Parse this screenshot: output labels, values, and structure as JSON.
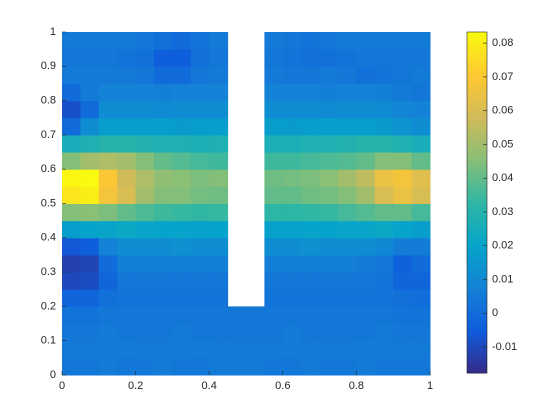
{
  "chart_data": {
    "type": "heatmap",
    "colormap": "parula",
    "x": [
      0.025,
      0.075,
      0.125,
      0.175,
      0.225,
      0.275,
      0.325,
      0.375,
      0.425,
      0.475,
      0.525,
      0.575,
      0.625,
      0.675,
      0.725,
      0.775,
      0.825,
      0.875,
      0.925,
      0.975
    ],
    "y": [
      0.025,
      0.075,
      0.125,
      0.175,
      0.225,
      0.275,
      0.325,
      0.375,
      0.425,
      0.475,
      0.525,
      0.575,
      0.625,
      0.675,
      0.725,
      0.775,
      0.825,
      0.875,
      0.925,
      0.975
    ],
    "z": [
      [
        0.004,
        0.004,
        0.005,
        0.004,
        0.004,
        0.005,
        0.004,
        0.004,
        0.005,
        0.005,
        0.005,
        0.004,
        0.004,
        0.005,
        0.004,
        0.004,
        0.005,
        0.004,
        0.004,
        0.004
      ],
      [
        0.005,
        0.005,
        0.005,
        0.006,
        0.005,
        0.005,
        0.005,
        0.006,
        0.005,
        0.005,
        0.005,
        0.005,
        0.006,
        0.005,
        0.005,
        0.005,
        0.006,
        0.005,
        0.005,
        0.005
      ],
      [
        0.004,
        0.004,
        0.005,
        0.004,
        0.004,
        0.004,
        0.005,
        0.004,
        0.004,
        0.004,
        0.004,
        0.004,
        0.005,
        0.004,
        0.004,
        0.004,
        0.004,
        0.005,
        0.004,
        0.004
      ],
      [
        0.003,
        0.003,
        0.004,
        0.004,
        0.004,
        0.004,
        0.004,
        0.004,
        0.004,
        0.004,
        0.004,
        0.004,
        0.004,
        0.004,
        0.004,
        0.004,
        0.004,
        0.004,
        0.003,
        0.003
      ],
      [
        -0.002,
        -0.002,
        0.002,
        0.003,
        0.003,
        0.003,
        0.003,
        0.003,
        0.003,
        null,
        null,
        0.003,
        0.003,
        0.003,
        0.003,
        0.003,
        0.003,
        0.003,
        0.002,
        0.001
      ],
      [
        -0.01,
        -0.009,
        -0.002,
        0.004,
        0.004,
        0.004,
        0.004,
        0.004,
        0.004,
        null,
        null,
        0.004,
        0.004,
        0.004,
        0.004,
        0.004,
        0.004,
        0.003,
        -0.002,
        -0.002
      ],
      [
        -0.012,
        -0.011,
        0.0,
        0.007,
        0.007,
        0.007,
        0.007,
        0.007,
        0.007,
        null,
        null,
        0.007,
        0.007,
        0.007,
        0.007,
        0.007,
        0.006,
        0.004,
        -0.003,
        0.0
      ],
      [
        -0.006,
        -0.004,
        0.008,
        0.012,
        0.012,
        0.012,
        0.013,
        0.012,
        0.012,
        null,
        null,
        0.012,
        0.012,
        0.013,
        0.012,
        0.012,
        0.012,
        0.01,
        0.006,
        0.006
      ],
      [
        0.018,
        0.02,
        0.021,
        0.022,
        0.021,
        0.02,
        0.02,
        0.019,
        0.02,
        null,
        null,
        0.019,
        0.019,
        0.02,
        0.02,
        0.021,
        0.021,
        0.022,
        0.02,
        0.018
      ],
      [
        0.045,
        0.046,
        0.044,
        0.04,
        0.037,
        0.035,
        0.034,
        0.033,
        0.034,
        null,
        null,
        0.032,
        0.032,
        0.033,
        0.034,
        0.036,
        0.038,
        0.04,
        0.04,
        0.036
      ],
      [
        0.078,
        0.08,
        0.068,
        0.06,
        0.05,
        0.045,
        0.045,
        0.043,
        0.042,
        null,
        null,
        0.04,
        0.04,
        0.042,
        0.043,
        0.045,
        0.05,
        0.06,
        0.065,
        0.06
      ],
      [
        0.082,
        0.083,
        0.07,
        0.058,
        0.052,
        0.047,
        0.046,
        0.044,
        0.045,
        null,
        null,
        0.042,
        0.043,
        0.044,
        0.046,
        0.05,
        0.055,
        0.065,
        0.068,
        0.062
      ],
      [
        0.045,
        0.05,
        0.052,
        0.05,
        0.045,
        0.04,
        0.038,
        0.036,
        0.035,
        null,
        null,
        0.035,
        0.035,
        0.036,
        0.037,
        0.038,
        0.04,
        0.045,
        0.045,
        0.04
      ],
      [
        0.026,
        0.028,
        0.03,
        0.03,
        0.029,
        0.028,
        0.028,
        0.027,
        0.028,
        null,
        null,
        0.027,
        0.027,
        0.028,
        0.028,
        0.029,
        0.03,
        0.03,
        0.028,
        0.026
      ],
      [
        0.0,
        0.012,
        0.018,
        0.018,
        0.018,
        0.018,
        0.017,
        0.018,
        0.018,
        null,
        null,
        0.018,
        0.017,
        0.018,
        0.018,
        0.018,
        0.018,
        0.017,
        0.014,
        0.012
      ],
      [
        -0.008,
        0.0,
        0.012,
        0.012,
        0.012,
        0.011,
        0.012,
        0.012,
        0.012,
        null,
        null,
        0.012,
        0.012,
        0.012,
        0.011,
        0.012,
        0.012,
        0.011,
        0.009,
        0.008
      ],
      [
        0.0,
        0.005,
        0.008,
        0.008,
        0.008,
        0.007,
        0.008,
        0.008,
        0.008,
        null,
        null,
        0.008,
        0.008,
        0.008,
        0.007,
        0.008,
        0.008,
        0.007,
        0.005,
        0.004
      ],
      [
        0.005,
        0.005,
        0.005,
        0.005,
        0.004,
        0.0,
        0.0,
        0.004,
        0.005,
        null,
        null,
        0.005,
        0.004,
        0.004,
        0.005,
        0.004,
        0.002,
        0.003,
        0.004,
        0.005
      ],
      [
        0.004,
        0.004,
        0.004,
        0.003,
        0.002,
        -0.004,
        -0.004,
        0.002,
        0.004,
        null,
        null,
        0.004,
        0.003,
        0.002,
        0.002,
        0.003,
        0.004,
        0.004,
        0.004,
        0.004
      ],
      [
        0.005,
        0.005,
        0.005,
        0.005,
        0.004,
        0.002,
        0.0,
        0.003,
        0.005,
        null,
        null,
        0.005,
        0.004,
        0.003,
        0.004,
        0.005,
        0.005,
        0.005,
        0.005,
        0.005
      ]
    ],
    "xlim": [
      0,
      1
    ],
    "xticks": [
      0,
      0.2,
      0.4,
      0.6,
      0.8,
      1
    ],
    "ylim": [
      0,
      1
    ],
    "yticks": [
      0,
      0.1,
      0.2,
      0.3,
      0.4,
      0.5,
      0.6,
      0.7,
      0.8,
      0.9,
      1
    ],
    "clim": [
      -0.0177,
      0.0833
    ],
    "cticks": [
      -0.01,
      0,
      0.01,
      0.02,
      0.03,
      0.04,
      0.05,
      0.06,
      0.07,
      0.08
    ]
  }
}
